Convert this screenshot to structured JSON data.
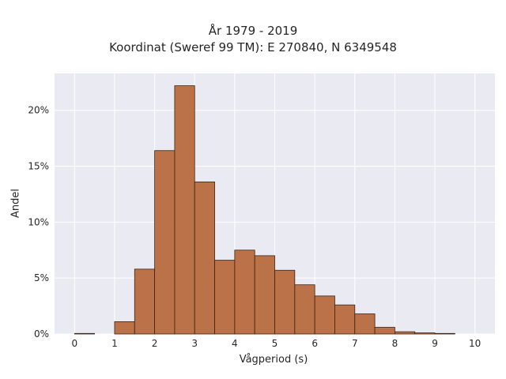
{
  "chart_data": {
    "type": "bar",
    "title": [
      "År 1979 - 2019",
      "Koordinat (Sweref 99 TM): E 270840, N 6349548"
    ],
    "xlabel": "Vågperiod (s)",
    "ylabel": "Andel",
    "bin_edges": [
      0,
      0.5,
      1,
      1.5,
      2,
      2.5,
      3,
      3.5,
      4,
      4.5,
      5,
      5.5,
      6,
      6.5,
      7,
      7.5,
      8,
      8.5,
      9,
      9.5,
      10
    ],
    "values": [
      0.05,
      0,
      1.1,
      5.8,
      16.4,
      22.2,
      13.6,
      6.6,
      7.5,
      7.0,
      5.7,
      4.4,
      3.4,
      2.6,
      1.8,
      0.6,
      0.2,
      0.1,
      0.05,
      0
    ],
    "x_ticks": [
      "0",
      "1",
      "2",
      "3",
      "4",
      "5",
      "6",
      "7",
      "8",
      "9",
      "10"
    ],
    "y_ticks": [
      "0%",
      "5%",
      "10%",
      "15%",
      "20%"
    ],
    "xlim": [
      -0.5,
      10.5
    ],
    "ylim": [
      0,
      23.3
    ],
    "grid": true,
    "bar_color": "#b86c3e",
    "bar_edge_color": "#3a2412",
    "background_color": "#eaeaf2"
  }
}
